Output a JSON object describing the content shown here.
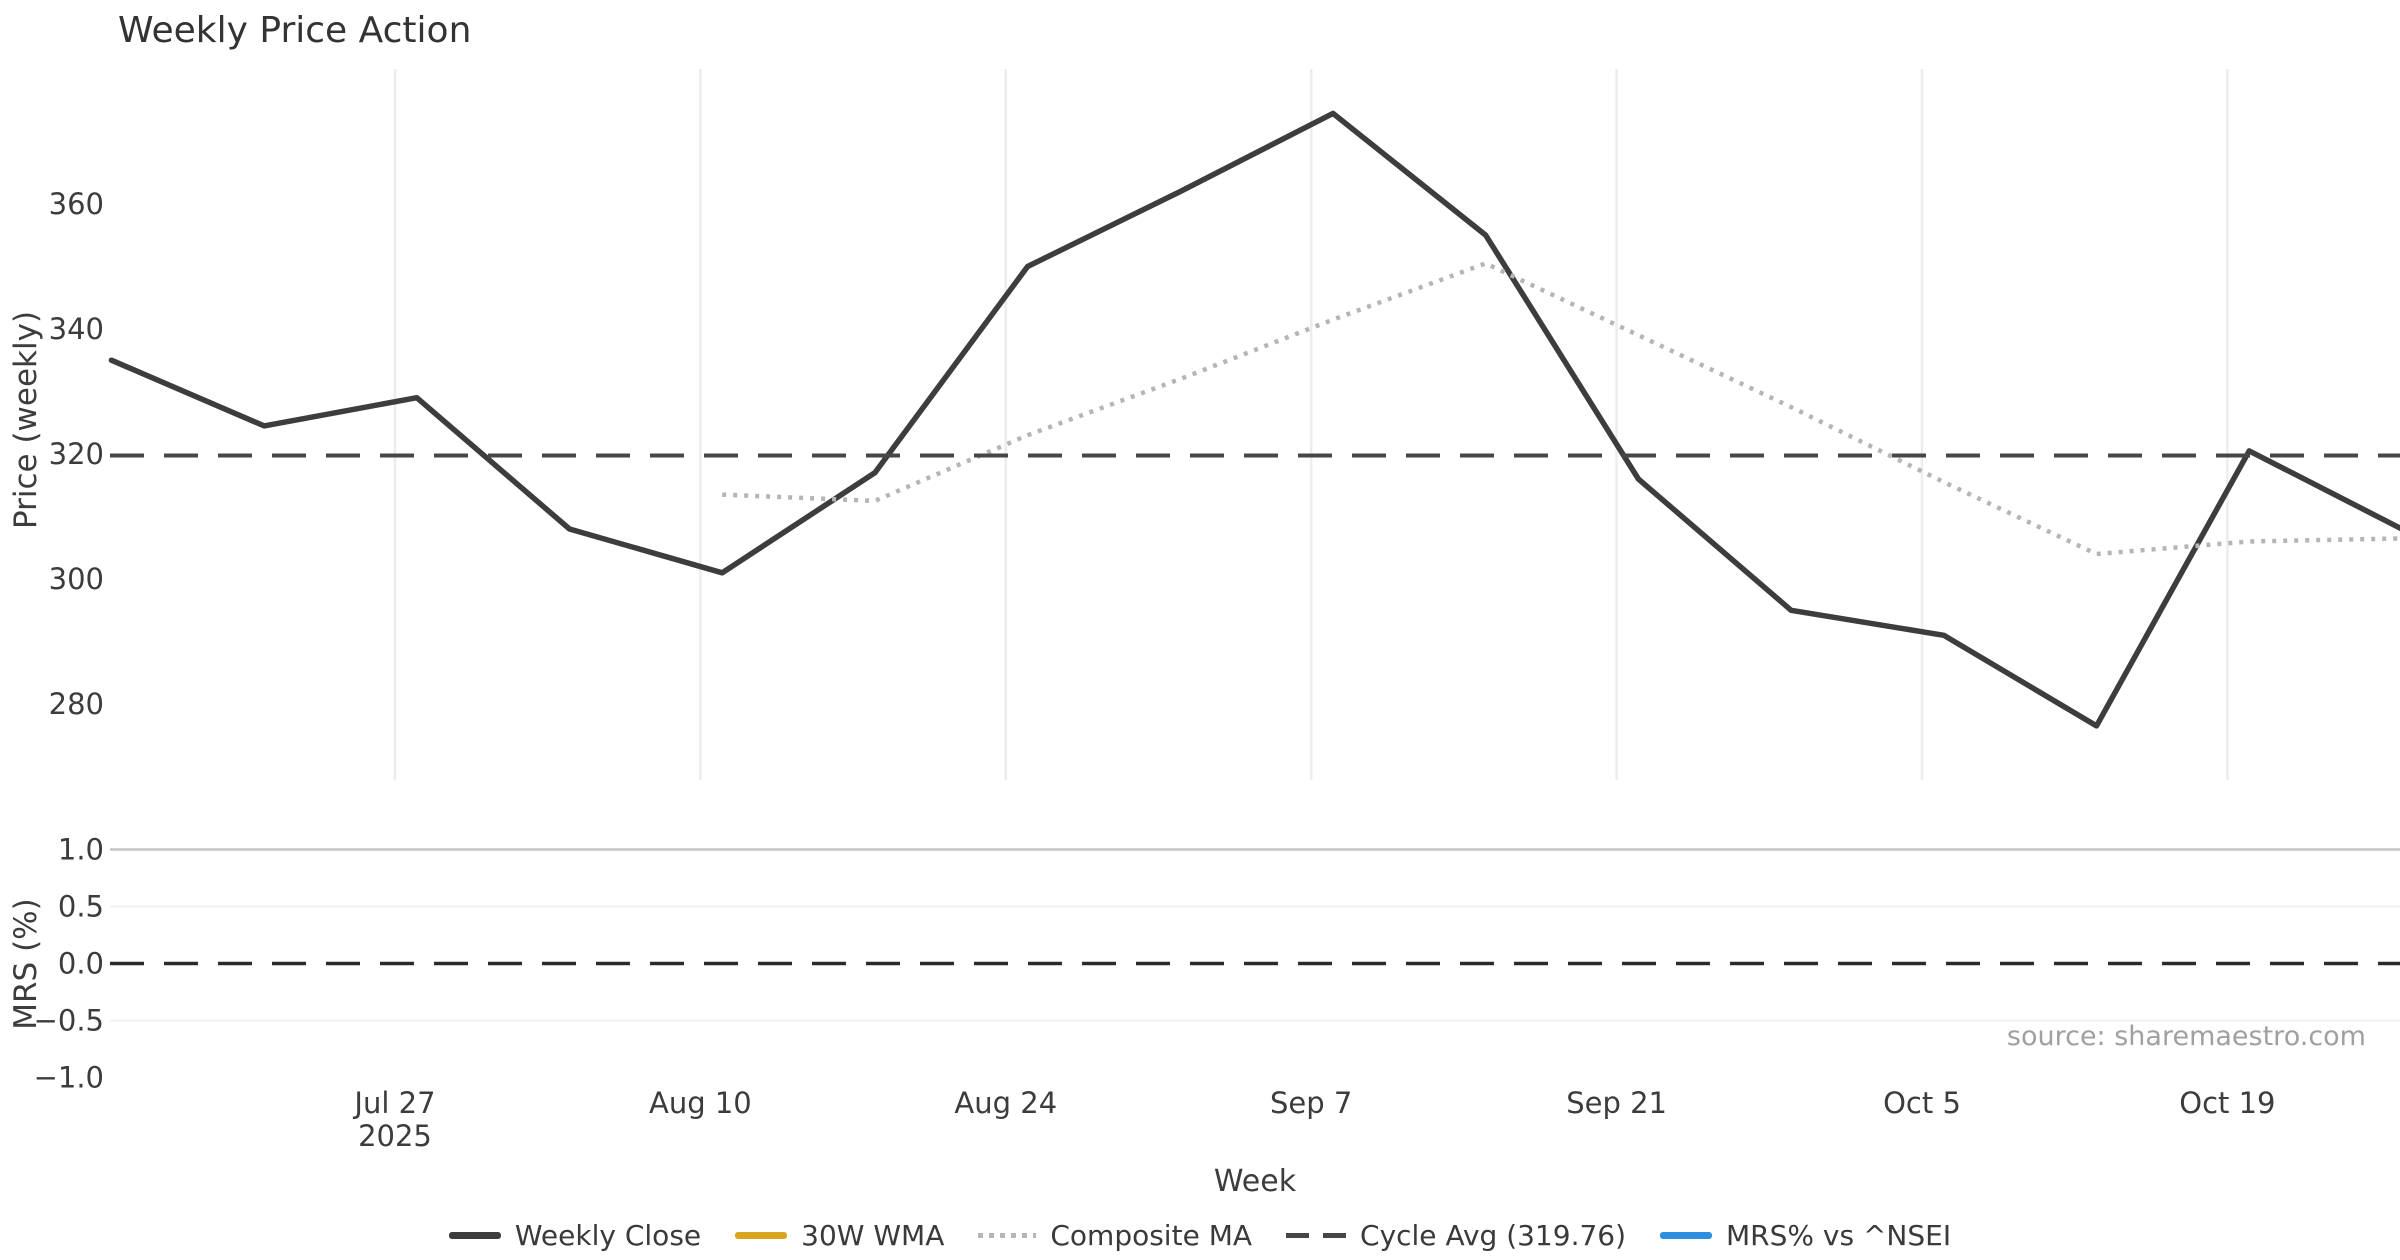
{
  "chart_data": {
    "type": "line",
    "title": "Weekly Price Action",
    "xlabel": "Week",
    "source": "source: sharemaestro.com",
    "legend_position": "bottom-center",
    "grid": "vertical-on-price-panel, horizontal-on-mrs-panel",
    "x_dates": [
      "Jul 14",
      "Jul 21",
      "Jul 28",
      "Aug 4",
      "Aug 11",
      "Aug 18",
      "Aug 25",
      "Sep 1",
      "Sep 8",
      "Sep 15",
      "Sep 22",
      "Sep 29",
      "Oct 6",
      "Oct 13",
      "Oct 20",
      "Oct 27"
    ],
    "x_days": [
      0,
      7,
      14,
      21,
      28,
      35,
      42,
      49,
      56,
      63,
      70,
      77,
      84,
      91,
      98,
      105
    ],
    "xticks": [
      {
        "label": "Jul 27",
        "sublabel": "2025",
        "day": 13
      },
      {
        "label": "Aug 10",
        "sublabel": "",
        "day": 27
      },
      {
        "label": "Aug 24",
        "sublabel": "",
        "day": 41
      },
      {
        "label": "Sep 7",
        "sublabel": "",
        "day": 55
      },
      {
        "label": "Sep 21",
        "sublabel": "",
        "day": 69
      },
      {
        "label": "Oct 5",
        "sublabel": "",
        "day": 83
      },
      {
        "label": "Oct 19",
        "sublabel": "",
        "day": 97
      }
    ],
    "panels": [
      {
        "name": "price",
        "ylabel": "Price (weekly)",
        "ylim": [
          267.8,
          381.6
        ],
        "yticks": [
          {
            "label": "280",
            "value": 280
          },
          {
            "label": "300",
            "value": 300
          },
          {
            "label": "320",
            "value": 320
          },
          {
            "label": "340",
            "value": 340
          },
          {
            "label": "360",
            "value": 360
          }
        ],
        "series": [
          {
            "name": "Weekly Close",
            "style": "solid",
            "color_key": "weekly_close",
            "x_days": [
              0,
              7,
              14,
              21,
              28,
              35,
              42,
              49,
              56,
              63,
              70,
              77,
              84,
              91,
              98,
              105
            ],
            "values": [
              335,
              324.5,
              329,
              308,
              301,
              317,
              350,
              362,
              374.5,
              355,
              316,
              295,
              291,
              276.5,
              320.5,
              308
            ]
          },
          {
            "name": "30W WMA",
            "style": "solid",
            "color_key": "wma_30w",
            "x_days": [],
            "values": []
          },
          {
            "name": "Composite MA",
            "style": "dotted",
            "color_key": "composite_ma",
            "x_days": [
              28,
              35,
              42,
              49,
              56,
              63,
              70,
              77,
              84,
              91,
              98,
              105
            ],
            "values": [
              313.5,
              312.5,
              323,
              332,
              341.5,
              350.5,
              339,
              327.5,
              315.5,
              304,
              306,
              306.5
            ]
          },
          {
            "name": "Cycle Avg (319.76)",
            "style": "dashed",
            "color_key": "cycle_avg",
            "hline": 319.76
          }
        ]
      },
      {
        "name": "mrs",
        "ylabel": "MRS (%)",
        "ylim": [
          -1.2,
          1.2
        ],
        "yticks": [
          {
            "label": "1.0",
            "value": 1.0
          },
          {
            "label": "0.5",
            "value": 0.5
          },
          {
            "label": "0.0",
            "value": 0.0
          },
          {
            "label": "−0.5",
            "value": -0.5
          },
          {
            "label": "−1.0",
            "value": -1.0
          }
        ],
        "gridlines": [
          {
            "value": 1.0,
            "weight": "major"
          },
          {
            "value": 0.5,
            "weight": "minor"
          },
          {
            "value": -0.5,
            "weight": "minor"
          }
        ],
        "series": [
          {
            "name": "MRS% vs ^NSEI",
            "style": "solid",
            "color_key": "mrs",
            "x_days": [],
            "values": []
          },
          {
            "name": "Zero Line",
            "style": "dashed",
            "color_key": "zero_line",
            "hline": 0.0
          }
        ]
      }
    ],
    "legend": [
      {
        "label": "Weekly Close",
        "style": "solid",
        "color_key": "weekly_close"
      },
      {
        "label": "30W WMA",
        "style": "solid",
        "color_key": "wma_30w"
      },
      {
        "label": "Composite MA",
        "style": "dotted",
        "color_key": "composite_ma"
      },
      {
        "label": "Cycle Avg (319.76)",
        "style": "dashed",
        "color_key": "cycle_avg"
      },
      {
        "label": "MRS% vs ^NSEI",
        "style": "solid",
        "color_key": "mrs"
      }
    ],
    "colors": {
      "weekly_close": "#3d3d3d",
      "wma_30w": "#d9a521",
      "composite_ma": "#b5b5b5",
      "cycle_avg": "#464646",
      "mrs": "#2e8fe0",
      "zero_line": "#2b2b2b",
      "grid_vertical": "#ededed",
      "grid_major": "#c4c4c4",
      "grid_minor": "#f0f0f0"
    }
  }
}
